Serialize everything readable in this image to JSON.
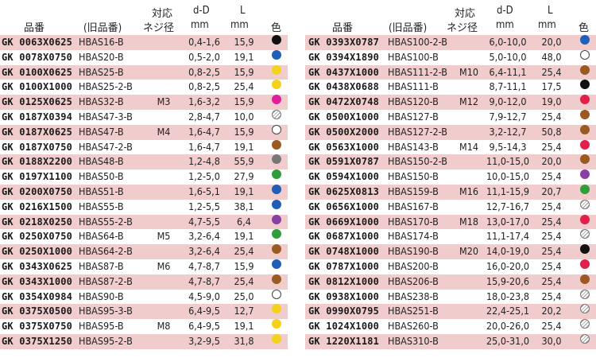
{
  "headers": {
    "code": "品番",
    "old": "(旧品番)",
    "m_line1": "対応",
    "m_line2": "ネジ径",
    "dd_line1": "d-D",
    "dd_line2": "mm",
    "l_line1": "L",
    "l_line2": "mm",
    "color": "色"
  },
  "left": [
    {
      "code": "GK 0063X0625",
      "old": "HBAS16-B",
      "m": "",
      "dd": "0,4-1,6",
      "l": "15,9",
      "color": "black"
    },
    {
      "code": "GK 0078X0750",
      "old": "HBAS20-B",
      "m": "",
      "dd": "0,5-2,0",
      "l": "19,1",
      "color": "blue"
    },
    {
      "code": "GK 0100X0625",
      "old": "HBAS25-B",
      "m": "",
      "dd": "0,8-2,5",
      "l": "15,9",
      "color": "yellow"
    },
    {
      "code": "GK 0100X1000",
      "old": "HBAS25-2-B",
      "m": "",
      "dd": "0,8-2,5",
      "l": "25,4",
      "color": "yellow"
    },
    {
      "code": "GK 0125X0625",
      "old": "HBAS32-B",
      "m": "M3",
      "dd": "1,6-3,2",
      "l": "15,9",
      "color": "magenta"
    },
    {
      "code": "GK 0187X0394",
      "old": "HBAS47-3-B",
      "m": "",
      "dd": "2,8-4,7",
      "l": "10,0",
      "color": "hatch"
    },
    {
      "code": "GK 0187X0625",
      "old": "HBAS47-B",
      "m": "M4",
      "dd": "1,6-4,7",
      "l": "15,9",
      "color": "white"
    },
    {
      "code": "GK 0187X0750",
      "old": "HBAS47-2-B",
      "m": "",
      "dd": "1,6-4,7",
      "l": "19,1",
      "color": "brown"
    },
    {
      "code": "GK 0188X2200",
      "old": "HBAS48-B",
      "m": "",
      "dd": "1,2-4,8",
      "l": "55,9",
      "color": "gray"
    },
    {
      "code": "GK 0197X1100",
      "old": "HBAS50-B",
      "m": "",
      "dd": "1,2-5,0",
      "l": "27,9",
      "color": "green"
    },
    {
      "code": "GK 0200X0750",
      "old": "HBAS51-B",
      "m": "",
      "dd": "1,6-5,1",
      "l": "19,1",
      "color": "blue"
    },
    {
      "code": "GK 0216X1500",
      "old": "HBAS55-B",
      "m": "",
      "dd": "1,2-5,5",
      "l": "38,1",
      "color": "blue"
    },
    {
      "code": "GK 0218X0250",
      "old": "HBAS55-2-B",
      "m": "",
      "dd": "4,7-5,5",
      "l": "6,4",
      "color": "purple"
    },
    {
      "code": "GK 0250X0750",
      "old": "HBAS64-B",
      "m": "M5",
      "dd": "3,2-6,4",
      "l": "19,1",
      "color": "green"
    },
    {
      "code": "GK 0250X1000",
      "old": "HBAS64-2-B",
      "m": "",
      "dd": "3,2-6,4",
      "l": "25,4",
      "color": "brown"
    },
    {
      "code": "GK 0343X0625",
      "old": "HBAS87-B",
      "m": "M6",
      "dd": "4,7-8,7",
      "l": "15,9",
      "color": "blue"
    },
    {
      "code": "GK 0343X1000",
      "old": "HBAS87-2-B",
      "m": "",
      "dd": "4,7-8,7",
      "l": "25,4",
      "color": "brown"
    },
    {
      "code": "GK 0354X0984",
      "old": "HBAS90-B",
      "m": "",
      "dd": "4,5-9,0",
      "l": "25,0",
      "color": "white"
    },
    {
      "code": "GK 0375X0500",
      "old": "HBAS95-3-B",
      "m": "",
      "dd": "6,4-9,5",
      "l": "12,7",
      "color": "yellow"
    },
    {
      "code": "GK 0375X0750",
      "old": "HBAS95-B",
      "m": "M8",
      "dd": "6,4-9,5",
      "l": "19,1",
      "color": "yellow"
    },
    {
      "code": "GK 0375X1250",
      "old": "HBAS95-2-B",
      "m": "",
      "dd": "3,2-9,5",
      "l": "31,8",
      "color": "yellow"
    }
  ],
  "right": [
    {
      "code": "GK 0393X0787",
      "old": "HBAS100-2-B",
      "m": "",
      "dd": "6,0-10,0",
      "l": "20,0",
      "color": "blue"
    },
    {
      "code": "GK 0394X1890",
      "old": "HBAS100-B",
      "m": "",
      "dd": "5,0-10,0",
      "l": "48,0",
      "color": "white"
    },
    {
      "code": "GK 0437X1000",
      "old": "HBAS111-2-B",
      "m": "M10",
      "dd": "6,4-11,1",
      "l": "25,4",
      "color": "brown"
    },
    {
      "code": "GK 0438X0688",
      "old": "HBAS111-B",
      "m": "",
      "dd": "8,7-11,1",
      "l": "17,5",
      "color": "black"
    },
    {
      "code": "GK 0472X0748",
      "old": "HBAS120-B",
      "m": "M12",
      "dd": "9,0-12,0",
      "l": "19,0",
      "color": "red"
    },
    {
      "code": "GK 0500X1000",
      "old": "HBAS127-B",
      "m": "",
      "dd": "7,9-12,7",
      "l": "25,4",
      "color": "brown"
    },
    {
      "code": "GK 0500X2000",
      "old": "HBAS127-2-B",
      "m": "",
      "dd": "3,2-12,7",
      "l": "50,8",
      "color": "brown"
    },
    {
      "code": "GK 0563X1000",
      "old": "HBAS143-B",
      "m": "M14",
      "dd": "9,5-14,3",
      "l": "25,4",
      "color": "red"
    },
    {
      "code": "GK 0591X0787",
      "old": "HBAS150-2-B",
      "m": "",
      "dd": "11,0-15,0",
      "l": "20,0",
      "color": "brown"
    },
    {
      "code": "GK 0594X1000",
      "old": "HBAS150-B",
      "m": "",
      "dd": "10,0-15,0",
      "l": "25,4",
      "color": "purple"
    },
    {
      "code": "GK 0625X0813",
      "old": "HBAS159-B",
      "m": "M16",
      "dd": "11,1-15,9",
      "l": "20,7",
      "color": "green"
    },
    {
      "code": "GK 0656X1000",
      "old": "HBAS167-B",
      "m": "",
      "dd": "12,7-16,7",
      "l": "25,4",
      "color": "hatch"
    },
    {
      "code": "GK 0669X1000",
      "old": "HBAS170-B",
      "m": "M18",
      "dd": "13,0-17,0",
      "l": "25,4",
      "color": "red"
    },
    {
      "code": "GK 0687X1000",
      "old": "HBAS174-B",
      "m": "",
      "dd": "11,1-17,4",
      "l": "25,4",
      "color": "hatch"
    },
    {
      "code": "GK 0748X1000",
      "old": "HBAS190-B",
      "m": "M20",
      "dd": "14,0-19,0",
      "l": "25,4",
      "color": "black"
    },
    {
      "code": "GK 0787X1000",
      "old": "HBAS200-B",
      "m": "",
      "dd": "16,0-20,0",
      "l": "25,4",
      "color": "red"
    },
    {
      "code": "GK 0812X1000",
      "old": "HBAS206-B",
      "m": "",
      "dd": "15,9-20,6",
      "l": "25,4",
      "color": "brown"
    },
    {
      "code": "GK 0938X1000",
      "old": "HBAS238-B",
      "m": "",
      "dd": "18,0-23,8",
      "l": "25,4",
      "color": "hatch"
    },
    {
      "code": "GK 0990X0795",
      "old": "HBAS251-B",
      "m": "",
      "dd": "22,4-25,1",
      "l": "20,2",
      "color": "hatch"
    },
    {
      "code": "GK 1024X1000",
      "old": "HBAS260-B",
      "m": "",
      "dd": "20,0-26,0",
      "l": "25,4",
      "color": "hatch"
    },
    {
      "code": "GK 1220X1181",
      "old": "HBAS310-B",
      "m": "",
      "dd": "25,0-31,0",
      "l": "30,0",
      "color": "hatch"
    }
  ],
  "palette": {
    "black": "#111111",
    "blue": "#1f5fb8",
    "yellow": "#f4d21c",
    "magenta": "#e0209a",
    "brown": "#9a5a22",
    "gray": "#777777",
    "green": "#2f9e3a",
    "purple": "#8a3fa4",
    "red": "#e0204a",
    "white": "#ffffff"
  }
}
